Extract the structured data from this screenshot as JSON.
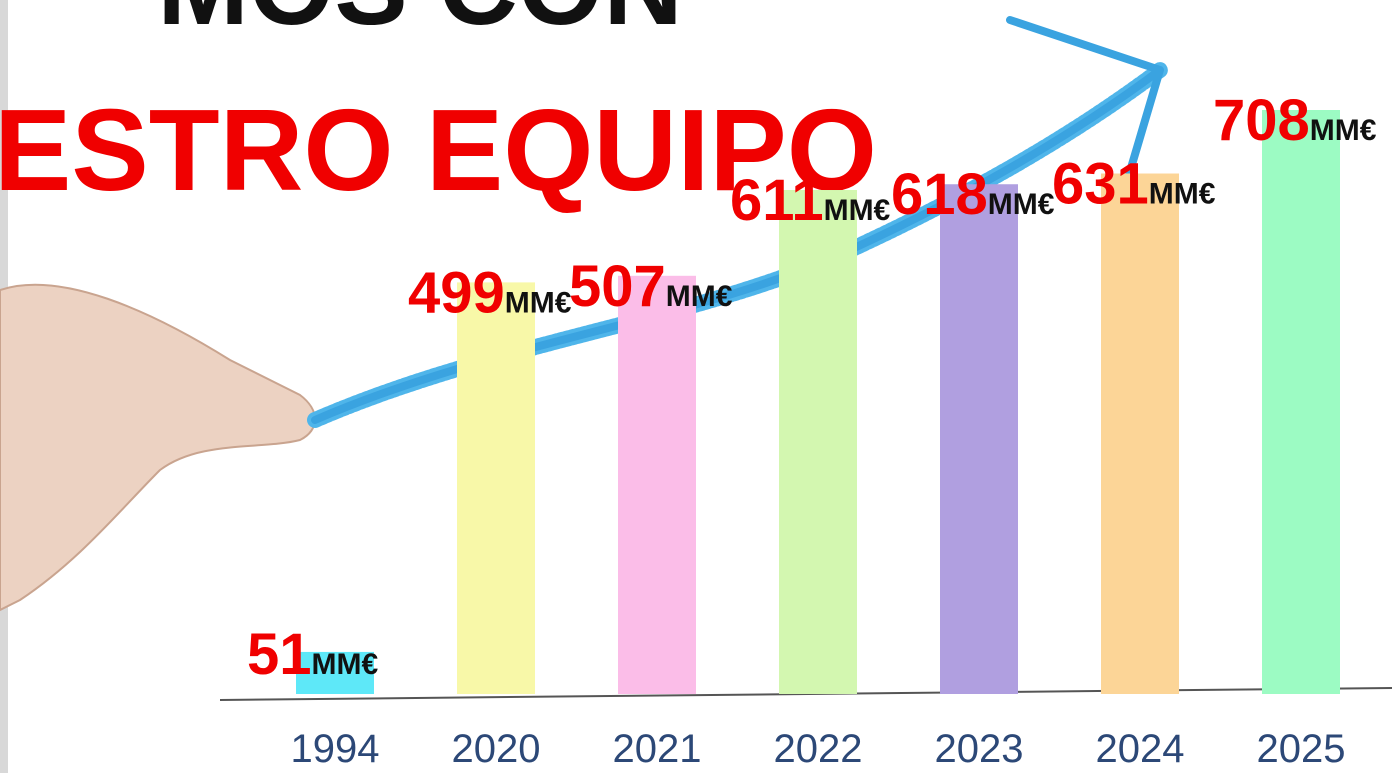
{
  "chart_data": {
    "type": "bar",
    "title": "ESTRO EQUIPO",
    "subtitle": "MOS CON",
    "categories": [
      "1994",
      "2020",
      "2021",
      "2022",
      "2023",
      "2024",
      "2025"
    ],
    "values": [
      51,
      499,
      507,
      611,
      618,
      631,
      708
    ],
    "unit": "MM€",
    "colors": [
      "#5ee8f8",
      "#f8f8a8",
      "#fbbde8",
      "#d3f7b0",
      "#b09fe0",
      "#fcd597",
      "#9cfbc3"
    ]
  }
}
